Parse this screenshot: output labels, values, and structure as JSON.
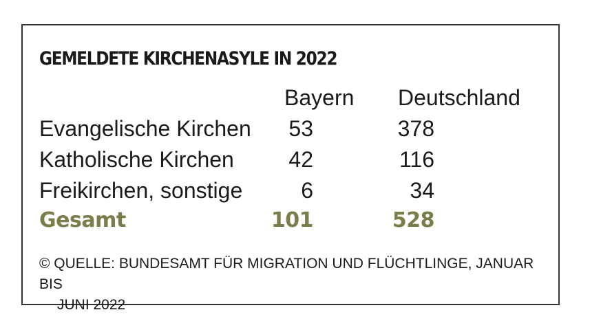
{
  "chart_data": {
    "type": "table",
    "title": "GEMELDETE KIRCHENASYLE IN 2022",
    "columns": [
      "Bayern",
      "Deutschland"
    ],
    "rows": [
      {
        "label": "Evangelische Kirchen",
        "values": [
          "53",
          "378"
        ]
      },
      {
        "label": "Katholische Kirchen",
        "values": [
          "42",
          "116"
        ]
      },
      {
        "label": "Freikirchen, sonstige",
        "values": [
          "6",
          "34"
        ]
      }
    ],
    "total": {
      "label": "Gesamt",
      "values": [
        "101",
        "528"
      ]
    },
    "source_line1": "© QUELLE: BUNDESAMT FÜR MIGRATION UND FLÜCHTLINGE, JANUAR BIS",
    "source_line2": "JUNI 2022",
    "colors": {
      "total": "#7a7d4a",
      "border": "#333333",
      "text": "#1a1a1a"
    }
  }
}
